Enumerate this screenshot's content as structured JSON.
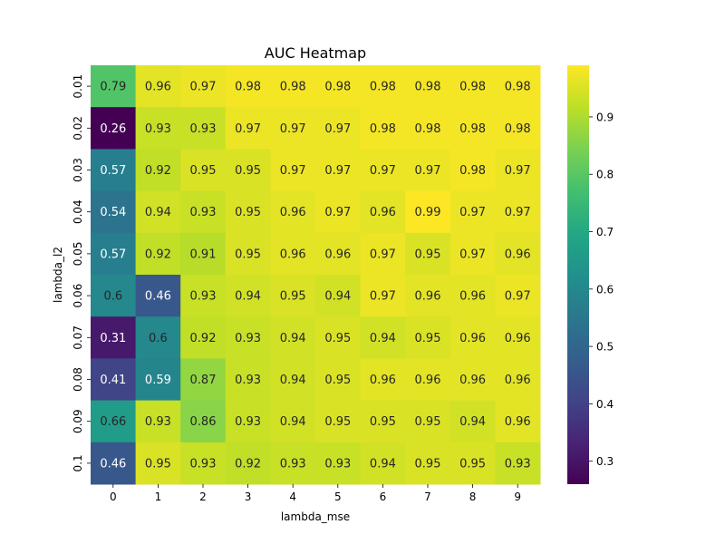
{
  "chart_data": {
    "type": "heatmap",
    "title": "AUC Heatmap",
    "xlabel": "lambda_mse",
    "ylabel": "lambda_l2",
    "x_categories": [
      "0",
      "1",
      "2",
      "3",
      "4",
      "5",
      "6",
      "7",
      "8",
      "9"
    ],
    "y_categories": [
      "0.01",
      "0.02",
      "0.03",
      "0.04",
      "0.05",
      "0.06",
      "0.07",
      "0.08",
      "0.09",
      "0.1"
    ],
    "values": [
      [
        0.79,
        0.96,
        0.97,
        0.98,
        0.98,
        0.98,
        0.98,
        0.98,
        0.98,
        0.98
      ],
      [
        0.26,
        0.93,
        0.93,
        0.97,
        0.97,
        0.97,
        0.98,
        0.98,
        0.98,
        0.98
      ],
      [
        0.57,
        0.92,
        0.95,
        0.95,
        0.97,
        0.97,
        0.97,
        0.97,
        0.98,
        0.97
      ],
      [
        0.54,
        0.94,
        0.93,
        0.95,
        0.96,
        0.97,
        0.96,
        0.99,
        0.97,
        0.97
      ],
      [
        0.57,
        0.92,
        0.91,
        0.95,
        0.96,
        0.96,
        0.97,
        0.95,
        0.97,
        0.96
      ],
      [
        0.6,
        0.46,
        0.93,
        0.94,
        0.95,
        0.94,
        0.97,
        0.96,
        0.96,
        0.97
      ],
      [
        0.31,
        0.6,
        0.92,
        0.93,
        0.94,
        0.95,
        0.94,
        0.95,
        0.96,
        0.96
      ],
      [
        0.41,
        0.59,
        0.87,
        0.93,
        0.94,
        0.95,
        0.96,
        0.96,
        0.96,
        0.96
      ],
      [
        0.66,
        0.93,
        0.86,
        0.93,
        0.94,
        0.95,
        0.95,
        0.95,
        0.94,
        0.96
      ],
      [
        0.46,
        0.95,
        0.93,
        0.92,
        0.93,
        0.93,
        0.94,
        0.95,
        0.95,
        0.93
      ]
    ],
    "colormap": "viridis",
    "vmin": 0.26,
    "vmax": 0.99,
    "colorbar_ticks": [
      0.3,
      0.4,
      0.5,
      0.6,
      0.7,
      0.8,
      0.9
    ],
    "colorbar_tick_labels": [
      "0.3",
      "0.4",
      "0.5",
      "0.6",
      "0.7",
      "0.8",
      "0.9"
    ],
    "annotations": true,
    "grid": false
  }
}
